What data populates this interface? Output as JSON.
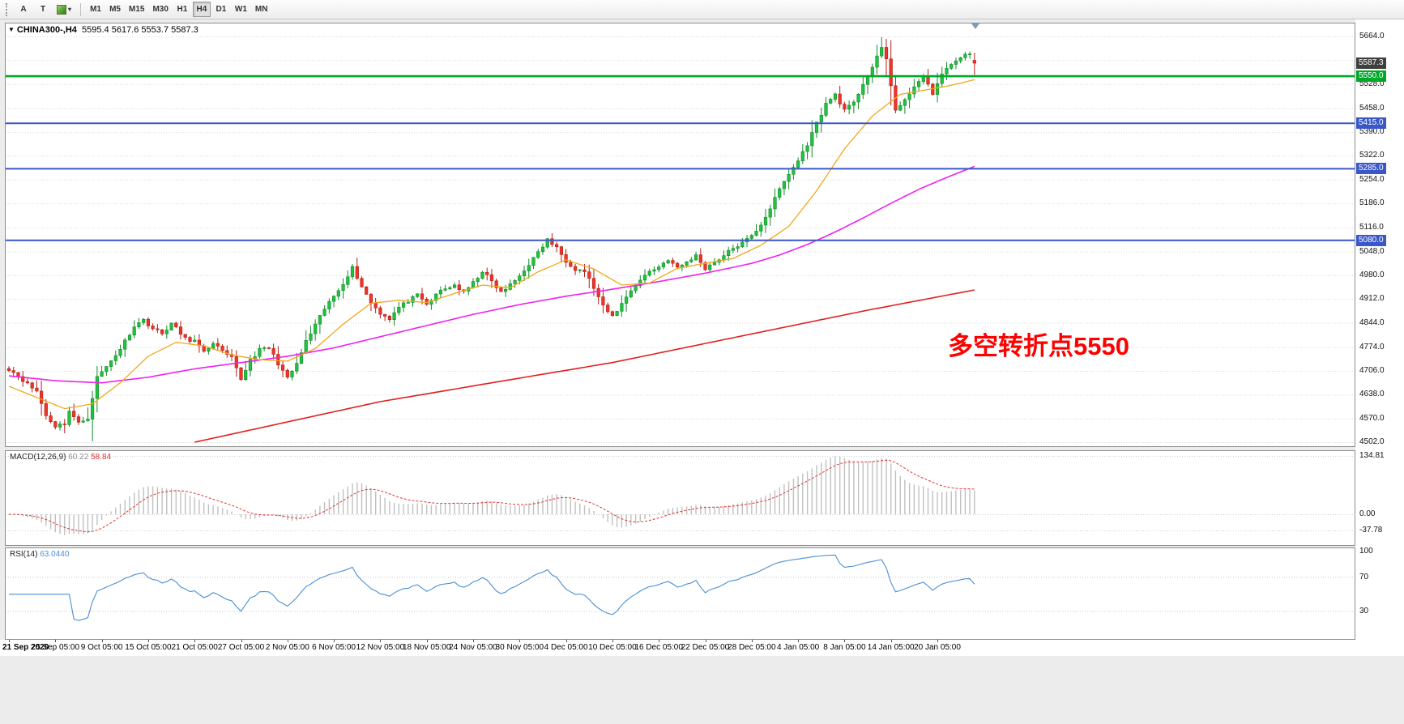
{
  "colors": {
    "up": "#128a2b",
    "up_fill": "#22c13e",
    "down": "#b31d13",
    "down_fill": "#ee352a",
    "ma_fast": "#f2a71b",
    "ma_mid": "#ee22ee",
    "ma_slow": "#e02020",
    "macd_hist": "#c0c0c0",
    "macd_signal": "#e03535",
    "rsi_line": "#4a8fd3",
    "level_green": "#00a829",
    "level_blue": "#3a57c8",
    "price_marker_bg": "#3f3f3f",
    "annotation": "#ff0000"
  },
  "toolbar": {
    "buttons": [
      {
        "label": "A"
      },
      {
        "label": "T"
      }
    ],
    "indicator_caret": "▾",
    "timeframes": [
      "M1",
      "M5",
      "M15",
      "M30",
      "H1",
      "H4",
      "D1",
      "W1",
      "MN"
    ],
    "active_timeframe": "H4"
  },
  "chart": {
    "title": {
      "collapse_glyph": "▼",
      "symbol_period": "CHINA300-,H4",
      "ohlc": "5595.4 5617.6 5553.7 5587.3"
    },
    "annotation": {
      "text": "多空转折点5550"
    }
  },
  "chart_data": {
    "type": "candlestick",
    "symbol": "CHINA300-",
    "timeframe": "H4",
    "current": {
      "open": 5595.4,
      "high": 5617.6,
      "low": 5553.7,
      "close": 5587.3
    },
    "y_axis": {
      "visible_min": 4502,
      "visible_max": 5664
    },
    "y_gridlines": [
      5664,
      5596,
      5528,
      5458,
      5390,
      5322,
      5254,
      5186,
      5116,
      5048,
      4980,
      4912,
      4844,
      4774,
      4706,
      4638,
      4570,
      4502
    ],
    "levels": [
      {
        "price": 5587.3,
        "label": "5587.3",
        "kind": "current"
      },
      {
        "price": 5550.0,
        "label": "5550.0",
        "kind": "green"
      },
      {
        "price": 5415.0,
        "label": "5415.0",
        "kind": "blue"
      },
      {
        "price": 5285.0,
        "label": "5285.0",
        "kind": "blue"
      },
      {
        "price": 5080.0,
        "label": "5080.0",
        "kind": "blue"
      }
    ],
    "x_labels": [
      "21 Sep 2020",
      "25 Sep 05:00",
      "9 Oct 05:00",
      "15 Oct 05:00",
      "21 Oct 05:00",
      "27 Oct 05:00",
      "2 Nov 05:00",
      "6 Nov 05:00",
      "12 Nov 05:00",
      "18 Nov 05:00",
      "24 Nov 05:00",
      "30 Nov 05:00",
      "4 Dec 05:00",
      "10 Dec 05:00",
      "16 Dec 05:00",
      "22 Dec 05:00",
      "28 Dec 05:00",
      "4 Jan 05:00",
      "8 Jan 05:00",
      "14 Jan 05:00",
      "20 Jan 05:00"
    ],
    "candles_per_label": 10,
    "num_candles": 209,
    "close_anchors": [
      [
        0,
        4712
      ],
      [
        2,
        4692
      ],
      [
        4,
        4668
      ],
      [
        6,
        4648
      ],
      [
        8,
        4578
      ],
      [
        10,
        4548
      ],
      [
        12,
        4556
      ],
      [
        13,
        4592
      ],
      [
        15,
        4556
      ],
      [
        17,
        4572
      ],
      [
        19,
        4688
      ],
      [
        21,
        4718
      ],
      [
        24,
        4770
      ],
      [
        27,
        4835
      ],
      [
        29,
        4852
      ],
      [
        31,
        4828
      ],
      [
        33,
        4812
      ],
      [
        35,
        4842
      ],
      [
        38,
        4798
      ],
      [
        40,
        4792
      ],
      [
        42,
        4758
      ],
      [
        44,
        4788
      ],
      [
        46,
        4760
      ],
      [
        48,
        4742
      ],
      [
        50,
        4682
      ],
      [
        52,
        4738
      ],
      [
        54,
        4766
      ],
      [
        56,
        4772
      ],
      [
        58,
        4728
      ],
      [
        60,
        4684
      ],
      [
        62,
        4726
      ],
      [
        64,
        4790
      ],
      [
        66,
        4836
      ],
      [
        68,
        4884
      ],
      [
        70,
        4920
      ],
      [
        72,
        4958
      ],
      [
        74,
        5002
      ],
      [
        76,
        4948
      ],
      [
        78,
        4902
      ],
      [
        80,
        4872
      ],
      [
        82,
        4856
      ],
      [
        84,
        4888
      ],
      [
        86,
        4906
      ],
      [
        88,
        4922
      ],
      [
        90,
        4896
      ],
      [
        93,
        4936
      ],
      [
        96,
        4952
      ],
      [
        98,
        4930
      ],
      [
        100,
        4958
      ],
      [
        102,
        4992
      ],
      [
        104,
        4962
      ],
      [
        106,
        4930
      ],
      [
        108,
        4952
      ],
      [
        110,
        4978
      ],
      [
        112,
        5012
      ],
      [
        114,
        5044
      ],
      [
        116,
        5082
      ],
      [
        118,
        5058
      ],
      [
        120,
        5022
      ],
      [
        122,
        4998
      ],
      [
        124,
        4992
      ],
      [
        126,
        4944
      ],
      [
        128,
        4890
      ],
      [
        130,
        4862
      ],
      [
        132,
        4898
      ],
      [
        134,
        4938
      ],
      [
        136,
        4966
      ],
      [
        138,
        4992
      ],
      [
        140,
        5004
      ],
      [
        142,
        5026
      ],
      [
        144,
        5000
      ],
      [
        146,
        5018
      ],
      [
        148,
        5036
      ],
      [
        150,
        5000
      ],
      [
        152,
        5018
      ],
      [
        154,
        5036
      ],
      [
        156,
        5058
      ],
      [
        158,
        5072
      ],
      [
        160,
        5092
      ],
      [
        162,
        5126
      ],
      [
        164,
        5172
      ],
      [
        166,
        5226
      ],
      [
        168,
        5270
      ],
      [
        170,
        5308
      ],
      [
        172,
        5356
      ],
      [
        174,
        5416
      ],
      [
        176,
        5470
      ],
      [
        178,
        5498
      ],
      [
        180,
        5452
      ],
      [
        182,
        5472
      ],
      [
        184,
        5530
      ],
      [
        186,
        5576
      ],
      [
        188,
        5630
      ],
      [
        189,
        5600
      ],
      [
        191,
        5452
      ],
      [
        193,
        5478
      ],
      [
        195,
        5524
      ],
      [
        197,
        5546
      ],
      [
        199,
        5502
      ],
      [
        201,
        5554
      ],
      [
        203,
        5584
      ],
      [
        205,
        5606
      ],
      [
        207,
        5612
      ],
      [
        208,
        5587
      ]
    ],
    "ma_fast_anchors": [
      [
        0,
        4662
      ],
      [
        6,
        4630
      ],
      [
        12,
        4598
      ],
      [
        18,
        4612
      ],
      [
        24,
        4672
      ],
      [
        30,
        4748
      ],
      [
        36,
        4788
      ],
      [
        42,
        4778
      ],
      [
        48,
        4752
      ],
      [
        54,
        4738
      ],
      [
        60,
        4734
      ],
      [
        66,
        4770
      ],
      [
        72,
        4840
      ],
      [
        78,
        4900
      ],
      [
        84,
        4908
      ],
      [
        90,
        4902
      ],
      [
        96,
        4928
      ],
      [
        102,
        4952
      ],
      [
        108,
        4944
      ],
      [
        114,
        4990
      ],
      [
        120,
        5024
      ],
      [
        126,
        4998
      ],
      [
        132,
        4952
      ],
      [
        138,
        4958
      ],
      [
        144,
        5000
      ],
      [
        150,
        5014
      ],
      [
        156,
        5028
      ],
      [
        162,
        5066
      ],
      [
        168,
        5120
      ],
      [
        174,
        5222
      ],
      [
        180,
        5342
      ],
      [
        186,
        5436
      ],
      [
        192,
        5498
      ],
      [
        198,
        5512
      ],
      [
        203,
        5524
      ],
      [
        208,
        5540
      ]
    ],
    "ma_mid_anchors": [
      [
        0,
        4692
      ],
      [
        10,
        4678
      ],
      [
        20,
        4672
      ],
      [
        30,
        4688
      ],
      [
        40,
        4712
      ],
      [
        50,
        4730
      ],
      [
        60,
        4748
      ],
      [
        70,
        4772
      ],
      [
        80,
        4804
      ],
      [
        90,
        4836
      ],
      [
        100,
        4868
      ],
      [
        110,
        4896
      ],
      [
        120,
        4920
      ],
      [
        130,
        4940
      ],
      [
        140,
        4962
      ],
      [
        150,
        4986
      ],
      [
        160,
        5014
      ],
      [
        166,
        5038
      ],
      [
        172,
        5068
      ],
      [
        178,
        5104
      ],
      [
        184,
        5144
      ],
      [
        190,
        5186
      ],
      [
        196,
        5226
      ],
      [
        202,
        5260
      ],
      [
        208,
        5292
      ]
    ],
    "ma_slow_anchors": [
      [
        40,
        4502
      ],
      [
        60,
        4560
      ],
      [
        80,
        4618
      ],
      [
        104,
        4672
      ],
      [
        130,
        4730
      ],
      [
        160,
        4812
      ],
      [
        185,
        4880
      ],
      [
        208,
        4938
      ]
    ]
  },
  "macd": {
    "label": "MACD(12,26,9)",
    "value_main": "60.22",
    "value_signal": "58.84",
    "axis_labels": [
      "134.81",
      "0.00",
      "-37.78"
    ],
    "axis_values": [
      134.81,
      0,
      -37.78
    ]
  },
  "rsi": {
    "label": "RSI(14)",
    "value": "63.0440",
    "axis_labels": [
      "100",
      "70",
      "30"
    ],
    "axis_values": [
      100,
      70,
      30
    ]
  }
}
